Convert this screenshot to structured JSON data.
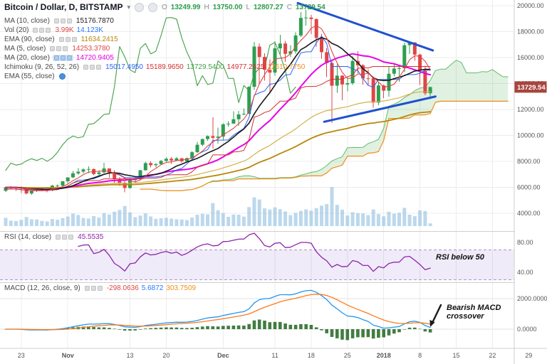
{
  "header": {
    "symbol_title": "Bitcoin / Dollar, D, BITSTAMP",
    "caret": "▾",
    "ohlc": [
      {
        "l": "O",
        "v": "13249.99"
      },
      {
        "l": "H",
        "v": "13750.00"
      },
      {
        "l": "L",
        "v": "12807.27"
      },
      {
        "l": "C",
        "v": "13729.54"
      }
    ]
  },
  "legend_rows": [
    {
      "name": "ma-10",
      "label": "MA (10, close)",
      "values": [
        {
          "t": "15176.7870",
          "c": "#1a1a1a"
        }
      ]
    },
    {
      "name": "vol-20",
      "label": "Vol (20)",
      "values": [
        {
          "t": "3.99K",
          "c": "#e04545"
        },
        {
          "t": "14.123K",
          "c": "#2979ff"
        }
      ]
    },
    {
      "name": "ema-90",
      "label": "EMA (90, close)",
      "values": [
        {
          "t": "11634.2415",
          "c": "#b8860b"
        }
      ]
    },
    {
      "name": "ma-5",
      "label": "MA (5, close)",
      "values": [
        {
          "t": "14253.3780",
          "c": "#e04545"
        }
      ]
    },
    {
      "name": "ma-20",
      "label": "MA (20, close)",
      "values": [
        {
          "t": "14720.9405",
          "c": "#e800e8"
        }
      ],
      "selected": true
    },
    {
      "name": "ichimoku",
      "label": "Ichimoku (9, 26, 52, 26)",
      "values": [
        {
          "t": "15017.4950",
          "c": "#2962ff"
        },
        {
          "t": "15189.9650",
          "c": "#d32f2f"
        },
        {
          "t": "13729.5400",
          "c": "#43a047"
        },
        {
          "t": "14977.2625",
          "c": "#d32f2f"
        },
        {
          "t": "12610.7750",
          "c": "#ef8e19"
        }
      ]
    },
    {
      "name": "ema-55",
      "label": "EMA (55, close)",
      "values": [],
      "editing": true
    }
  ],
  "rsi_pane": {
    "label": "RSI (14, close)",
    "values": [
      {
        "t": "45.5535",
        "c": "#8e24aa"
      }
    ]
  },
  "macd_pane": {
    "label": "MACD (12, 26, close, 9)",
    "values": [
      {
        "t": "-298.0636",
        "c": "#e04545"
      },
      {
        "t": "5.6872",
        "c": "#2979ff"
      },
      {
        "t": "303.7509",
        "c": "#ef8e19"
      }
    ]
  },
  "annotations": {
    "rsi": "RSI below 50",
    "macd_line1": "Bearish MACD",
    "macd_line2": "crossover"
  },
  "price_scale": {
    "gridlines": [
      20000,
      18000,
      16000,
      14000,
      12000,
      10000,
      8000,
      6000,
      4000
    ],
    "labels": [
      "20000.00",
      "18000.00",
      "16000.00",
      "14000.00",
      "12000.00",
      "10000.00",
      "8000.00",
      "6000.00",
      "4000.00"
    ],
    "last_price": 13729.54,
    "last_price_label": "13729.54"
  },
  "rsi_scale": {
    "labels": [
      "80.00",
      "40.00"
    ],
    "values": [
      80,
      40
    ],
    "band": [
      70,
      30
    ]
  },
  "macd_scale": {
    "labels": [
      "2000.0000",
      "0.0000"
    ],
    "values": [
      2000,
      0
    ]
  },
  "colors": {
    "up": "#2e9e50",
    "down": "#e04545",
    "volume": "#85b8dc",
    "ma5": "#e04545",
    "ma10": "#1a1a1a",
    "ma20": "#e800e8",
    "ema55": "#d2b14a",
    "ema90": "#b8860b",
    "ichimoku_conversion": "#2962ff",
    "ichimoku_base": "#d32f2f",
    "ichimoku_lagging": "#43a047",
    "ichimoku_span_a": "#66bb6a",
    "ichimoku_span_b": "#ef8e19",
    "cloud_green": "rgba(102,187,106,0.20)",
    "cloud_red": "rgba(239,83,80,0.15)",
    "rsi": "#8e24aa",
    "rsi_band": "rgba(126,87,194,0.12)",
    "rsi_band_border": "#b590c9",
    "macd": "#2196f3",
    "macd_signal": "#ff7a1a",
    "macd_hist": "#2d6e2d",
    "grid": "#ececec",
    "separator": "#cfcfcf",
    "axis_text": "#555555",
    "trend": "#2050d0",
    "badge_bg": "#a8453e",
    "badge_text": "#ffffff",
    "ohlc_value": "#2e9e50"
  },
  "chart_data": {
    "type": "candlestick",
    "title": "Bitcoin / Dollar, D, BITSTAMP",
    "interval": "1D",
    "start_date": "2017-10-20",
    "columns": [
      "open",
      "high",
      "low",
      "close",
      "volume_k"
    ],
    "candles": [
      [
        5729,
        6060,
        5650,
        5988,
        12.3
      ],
      [
        5988,
        6080,
        5860,
        6003,
        8.1
      ],
      [
        6003,
        6060,
        5720,
        5983,
        7.5
      ],
      [
        5983,
        6050,
        5555,
        5890,
        9.2
      ],
      [
        5890,
        5900,
        5450,
        5526,
        13.4
      ],
      [
        5526,
        5760,
        5420,
        5750,
        10.2
      ],
      [
        5750,
        5990,
        5650,
        5904,
        9.8
      ],
      [
        5904,
        5950,
        5700,
        5780,
        7.7
      ],
      [
        5780,
        5830,
        5630,
        5755,
        6.9
      ],
      [
        5755,
        6180,
        5710,
        6130,
        10.5
      ],
      [
        6130,
        6230,
        6010,
        6132,
        9.4
      ],
      [
        6132,
        6480,
        6080,
        6468,
        11.8
      ],
      [
        6468,
        6780,
        6340,
        6767,
        14.2
      ],
      [
        6767,
        7250,
        6720,
        7078,
        18.6
      ],
      [
        7078,
        7480,
        6950,
        7207,
        16.4
      ],
      [
        7207,
        7490,
        7060,
        7379,
        12.1
      ],
      [
        7379,
        7617,
        7090,
        7407,
        11.3
      ],
      [
        7407,
        7445,
        6920,
        7022,
        14.8
      ],
      [
        7022,
        7310,
        6890,
        7144,
        12.6
      ],
      [
        7144,
        7880,
        7100,
        7459,
        19.3
      ],
      [
        7459,
        7460,
        6750,
        7143,
        17.2
      ],
      [
        7143,
        7320,
        6360,
        6618,
        21.5
      ],
      [
        6618,
        6800,
        6100,
        6357,
        24.1
      ],
      [
        6357,
        6520,
        5605,
        5950,
        29.8
      ],
      [
        5950,
        6750,
        5890,
        6559,
        20.4
      ],
      [
        6559,
        6780,
        6340,
        6635,
        13.2
      ],
      [
        6635,
        7340,
        6580,
        7315,
        15.7
      ],
      [
        7315,
        7980,
        7280,
        7871,
        18.9
      ],
      [
        7871,
        8000,
        7540,
        7708,
        14.3
      ],
      [
        7708,
        7860,
        7530,
        7790,
        10.8
      ],
      [
        7790,
        8110,
        7720,
        8036,
        11.6
      ],
      [
        8036,
        8290,
        7960,
        8200,
        12.4
      ],
      [
        8200,
        8320,
        7810,
        8071,
        11.1
      ],
      [
        8071,
        8340,
        8020,
        8235,
        10.2
      ],
      [
        8235,
        8280,
        7880,
        8010,
        9.7
      ],
      [
        8010,
        8310,
        7920,
        8250,
        8.9
      ],
      [
        8250,
        8790,
        8200,
        8707,
        12.7
      ],
      [
        8707,
        9520,
        8660,
        9284,
        16.8
      ],
      [
        9284,
        9750,
        9180,
        9718,
        18.2
      ],
      [
        9718,
        10000,
        9590,
        9950,
        17.5
      ],
      [
        9950,
        11395,
        9000,
        9816,
        34.2
      ],
      [
        9816,
        10590,
        9380,
        9911,
        23.6
      ],
      [
        9911,
        10940,
        9660,
        10860,
        19.4
      ],
      [
        10860,
        11100,
        10680,
        10912,
        13.8
      ],
      [
        10912,
        11850,
        10900,
        11250,
        17.2
      ],
      [
        11250,
        11900,
        10750,
        11623,
        16.9
      ],
      [
        11623,
        12090,
        11570,
        11667,
        14.1
      ],
      [
        11667,
        13790,
        11640,
        13749,
        28.3
      ],
      [
        13749,
        17200,
        13500,
        16850,
        42.8
      ],
      [
        16850,
        17100,
        13950,
        16047,
        39.6
      ],
      [
        16047,
        16320,
        14210,
        15059,
        26.4
      ],
      [
        15059,
        15850,
        13226,
        14845,
        24.7
      ],
      [
        14845,
        17270,
        14600,
        16712,
        27.9
      ],
      [
        16712,
        17750,
        16250,
        17083,
        25.2
      ],
      [
        17083,
        17300,
        15670,
        16286,
        21.8
      ],
      [
        16286,
        16960,
        16060,
        16486,
        16.4
      ],
      [
        16486,
        17950,
        16300,
        17706,
        19.7
      ],
      [
        17706,
        19500,
        17590,
        19065,
        22.6
      ],
      [
        19065,
        19666,
        18465,
        19086,
        24.9
      ],
      [
        19086,
        19300,
        17813,
        18972,
        23.1
      ],
      [
        18972,
        19020,
        16812,
        17522,
        26.8
      ],
      [
        17522,
        17830,
        15931,
        16417,
        30.4
      ],
      [
        16417,
        16750,
        14500,
        15579,
        32.7
      ],
      [
        15579,
        15750,
        10961,
        13831,
        58.2
      ],
      [
        13831,
        15493,
        13300,
        14606,
        31.5
      ],
      [
        14606,
        14660,
        12700,
        13925,
        24.3
      ],
      [
        13925,
        14430,
        13401,
        14026,
        15.8
      ],
      [
        14026,
        16100,
        13902,
        15745,
        20.6
      ],
      [
        15745,
        16482,
        14800,
        15409,
        19.2
      ],
      [
        15409,
        15500,
        13911,
        14398,
        18.7
      ],
      [
        14398,
        15100,
        13901,
        14392,
        16.3
      ],
      [
        14392,
        14445,
        12150,
        12531,
        24.8
      ],
      [
        12531,
        14100,
        12320,
        13850,
        17.9
      ],
      [
        13850,
        13921,
        12877,
        13444,
        14.6
      ],
      [
        13444,
        15350,
        12980,
        14754,
        21.3
      ],
      [
        14754,
        15500,
        14550,
        15156,
        18.4
      ],
      [
        15156,
        15456,
        14130,
        15180,
        19.8
      ],
      [
        15180,
        17150,
        14880,
        16954,
        27.2
      ],
      [
        16954,
        17234,
        16286,
        17172,
        16.9
      ],
      [
        17172,
        17176,
        15751,
        16228,
        14.7
      ],
      [
        16228,
        16302,
        13900,
        15000,
        23.4
      ],
      [
        15000,
        15380,
        13100,
        13250,
        22.4
      ],
      [
        13249.99,
        13750,
        12807.27,
        13729.54,
        3.99
      ]
    ],
    "time_labels": [
      [
        "23",
        3,
        0
      ],
      [
        "Nov",
        12,
        1
      ],
      [
        "13",
        24,
        0
      ],
      [
        "20",
        31,
        0
      ],
      [
        "Dec",
        42,
        1
      ],
      [
        "11",
        52,
        0
      ],
      [
        "18",
        59,
        0
      ],
      [
        "25",
        66,
        0
      ],
      [
        "2018",
        73,
        1
      ],
      [
        "8",
        80,
        0
      ],
      [
        "15",
        87,
        0
      ],
      [
        "22",
        94,
        0
      ],
      [
        "29",
        101,
        0
      ]
    ],
    "indicators": {
      "ma": [
        5,
        10,
        20
      ],
      "ema": [
        55,
        90
      ],
      "ichimoku": [
        9,
        26,
        52,
        26
      ],
      "rsi": 14,
      "macd": [
        12,
        26,
        9
      ],
      "vol_ma": 20
    },
    "drawings": {
      "channel": [
        {
          "d1": 56.4,
          "p1": 20200,
          "d2": 82.5,
          "p2": 16550
        },
        {
          "d1": 61.5,
          "p1": 11050,
          "d2": 83,
          "p2": 13000
        }
      ]
    }
  }
}
